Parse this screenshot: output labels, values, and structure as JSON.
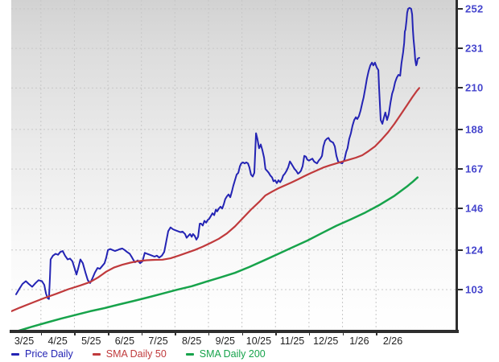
{
  "chart_data": {
    "type": "line",
    "title": "",
    "grid": "dashed",
    "legend_position": "bottom-left",
    "x_axis": {
      "labels": [
        "3/25",
        "4/25",
        "5/25",
        "6/25",
        "7/25",
        "8/25",
        "9/25",
        "10/25",
        "11/25",
        "12/25",
        "1/26",
        "2/26"
      ],
      "unit": "month"
    },
    "y_axis": {
      "ticks": [
        252,
        231,
        210,
        188,
        167,
        146,
        124,
        103
      ],
      "side": "right",
      "min": 95,
      "max": 257
    },
    "series": [
      {
        "name": "Price Daily",
        "color": "#2424b4",
        "points": [
          [
            -0.24,
            100.5
          ],
          [
            -0.14,
            103.5
          ],
          [
            -0.05,
            106
          ],
          [
            0.05,
            107.5
          ],
          [
            0.14,
            106
          ],
          [
            0.24,
            104.5
          ],
          [
            0.34,
            106.5
          ],
          [
            0.43,
            108
          ],
          [
            0.53,
            107.5
          ],
          [
            0.6,
            105.5
          ],
          [
            0.65,
            101
          ],
          [
            0.7,
            98.5
          ],
          [
            0.74,
            98
          ],
          [
            0.77,
            110
          ],
          [
            0.79,
            119
          ],
          [
            0.86,
            121
          ],
          [
            0.94,
            122
          ],
          [
            1.01,
            121.5
          ],
          [
            1.08,
            123
          ],
          [
            1.15,
            123.5
          ],
          [
            1.22,
            121
          ],
          [
            1.3,
            119
          ],
          [
            1.37,
            119.5
          ],
          [
            1.44,
            118
          ],
          [
            1.51,
            114
          ],
          [
            1.56,
            111
          ],
          [
            1.61,
            114
          ],
          [
            1.68,
            119
          ],
          [
            1.75,
            117
          ],
          [
            1.83,
            112
          ],
          [
            1.9,
            108
          ],
          [
            1.97,
            106.5
          ],
          [
            2.04,
            109
          ],
          [
            2.11,
            112
          ],
          [
            2.19,
            114.5
          ],
          [
            2.26,
            114
          ],
          [
            2.33,
            115.5
          ],
          [
            2.4,
            117
          ],
          [
            2.45,
            120
          ],
          [
            2.5,
            124
          ],
          [
            2.57,
            124.5
          ],
          [
            2.64,
            124
          ],
          [
            2.71,
            123.5
          ],
          [
            2.79,
            124
          ],
          [
            2.86,
            124.5
          ],
          [
            2.93,
            124.8
          ],
          [
            3.0,
            124
          ],
          [
            3.07,
            123
          ],
          [
            3.15,
            122
          ],
          [
            3.22,
            120
          ],
          [
            3.27,
            118.5
          ],
          [
            3.31,
            117.5
          ],
          [
            3.39,
            118.5
          ],
          [
            3.46,
            117
          ],
          [
            3.53,
            118
          ],
          [
            3.6,
            122.5
          ],
          [
            3.67,
            122
          ],
          [
            3.75,
            121.5
          ],
          [
            3.82,
            121
          ],
          [
            3.89,
            120.5
          ],
          [
            3.96,
            121
          ],
          [
            4.03,
            120
          ],
          [
            4.11,
            121
          ],
          [
            4.18,
            123
          ],
          [
            4.23,
            127.5
          ],
          [
            4.3,
            134
          ],
          [
            4.37,
            136
          ],
          [
            4.44,
            135
          ],
          [
            4.51,
            134.5
          ],
          [
            4.59,
            134
          ],
          [
            4.66,
            133.5
          ],
          [
            4.73,
            133.8
          ],
          [
            4.8,
            132.5
          ],
          [
            4.85,
            130.5
          ],
          [
            4.9,
            131.5
          ],
          [
            4.95,
            132.5
          ],
          [
            5.0,
            131
          ],
          [
            5.04,
            132.5
          ],
          [
            5.09,
            131.5
          ],
          [
            5.14,
            129.5
          ],
          [
            5.19,
            131
          ],
          [
            5.24,
            138
          ],
          [
            5.28,
            138
          ],
          [
            5.33,
            137
          ],
          [
            5.38,
            139.5
          ],
          [
            5.43,
            138.5
          ],
          [
            5.48,
            140
          ],
          [
            5.52,
            140.5
          ],
          [
            5.57,
            142
          ],
          [
            5.62,
            143.5
          ],
          [
            5.67,
            142.5
          ],
          [
            5.72,
            145.5
          ],
          [
            5.76,
            144.5
          ],
          [
            5.81,
            146
          ],
          [
            5.86,
            147
          ],
          [
            5.91,
            146
          ],
          [
            5.96,
            148.5
          ],
          [
            6.0,
            151
          ],
          [
            6.05,
            152.5
          ],
          [
            6.1,
            153.5
          ],
          [
            6.15,
            152
          ],
          [
            6.2,
            155
          ],
          [
            6.24,
            158
          ],
          [
            6.29,
            161
          ],
          [
            6.34,
            164
          ],
          [
            6.39,
            165
          ],
          [
            6.44,
            168.5
          ],
          [
            6.48,
            170
          ],
          [
            6.53,
            170.5
          ],
          [
            6.58,
            170
          ],
          [
            6.63,
            170.5
          ],
          [
            6.68,
            170
          ],
          [
            6.72,
            168
          ],
          [
            6.77,
            164
          ],
          [
            6.82,
            163
          ],
          [
            6.87,
            165
          ],
          [
            6.92,
            186
          ],
          [
            6.96,
            183
          ],
          [
            7.01,
            178
          ],
          [
            7.06,
            180
          ],
          [
            7.11,
            177
          ],
          [
            7.16,
            173
          ],
          [
            7.2,
            167
          ],
          [
            7.25,
            166
          ],
          [
            7.3,
            165
          ],
          [
            7.35,
            163.5
          ],
          [
            7.4,
            162.5
          ],
          [
            7.44,
            160.5
          ],
          [
            7.49,
            161
          ],
          [
            7.54,
            159.5
          ],
          [
            7.59,
            161
          ],
          [
            7.64,
            160
          ],
          [
            7.69,
            161.5
          ],
          [
            7.73,
            163.5
          ],
          [
            7.78,
            164.5
          ],
          [
            7.83,
            166
          ],
          [
            7.88,
            168
          ],
          [
            7.93,
            171
          ],
          [
            7.97,
            170
          ],
          [
            8.02,
            168.5
          ],
          [
            8.07,
            167
          ],
          [
            8.12,
            166
          ],
          [
            8.17,
            164.5
          ],
          [
            8.21,
            165
          ],
          [
            8.26,
            166
          ],
          [
            8.31,
            168.5
          ],
          [
            8.36,
            174
          ],
          [
            8.41,
            173.5
          ],
          [
            8.45,
            172
          ],
          [
            8.5,
            171.5
          ],
          [
            8.55,
            172
          ],
          [
            8.6,
            172.5
          ],
          [
            8.65,
            171
          ],
          [
            8.69,
            170.5
          ],
          [
            8.74,
            170
          ],
          [
            8.79,
            171.5
          ],
          [
            8.84,
            172.5
          ],
          [
            8.89,
            174
          ],
          [
            8.93,
            179
          ],
          [
            8.98,
            182
          ],
          [
            9.03,
            183
          ],
          [
            9.08,
            183.5
          ],
          [
            9.13,
            182
          ],
          [
            9.17,
            181.5
          ],
          [
            9.22,
            181
          ],
          [
            9.27,
            179
          ],
          [
            9.32,
            174
          ],
          [
            9.37,
            171
          ],
          [
            9.41,
            170.5
          ],
          [
            9.49,
            170
          ],
          [
            9.56,
            172
          ],
          [
            9.61,
            176
          ],
          [
            9.65,
            178
          ],
          [
            9.7,
            183
          ],
          [
            9.75,
            186
          ],
          [
            9.8,
            190
          ],
          [
            9.85,
            193
          ],
          [
            9.9,
            194.5
          ],
          [
            9.94,
            193.5
          ],
          [
            9.99,
            195
          ],
          [
            10.04,
            198
          ],
          [
            10.09,
            202
          ],
          [
            10.13,
            205
          ],
          [
            10.18,
            210
          ],
          [
            10.23,
            215
          ],
          [
            10.28,
            219
          ],
          [
            10.33,
            222
          ],
          [
            10.38,
            223.5
          ],
          [
            10.42,
            222
          ],
          [
            10.47,
            223.5
          ],
          [
            10.52,
            221
          ],
          [
            10.57,
            219.5
          ],
          [
            10.59,
            211
          ],
          [
            10.64,
            193
          ],
          [
            10.69,
            191
          ],
          [
            10.73,
            194
          ],
          [
            10.78,
            197
          ],
          [
            10.83,
            193
          ],
          [
            10.88,
            196
          ],
          [
            10.93,
            202
          ],
          [
            10.98,
            207
          ],
          [
            11.02,
            209
          ],
          [
            11.07,
            213
          ],
          [
            11.12,
            215.5
          ],
          [
            11.17,
            217
          ],
          [
            11.22,
            216.5
          ],
          [
            11.26,
            223
          ],
          [
            11.31,
            229
          ],
          [
            11.34,
            234
          ],
          [
            11.36,
            240
          ],
          [
            11.38,
            241
          ],
          [
            11.41,
            246
          ],
          [
            11.43,
            250
          ],
          [
            11.46,
            252
          ],
          [
            11.5,
            252.5
          ],
          [
            11.55,
            252
          ],
          [
            11.58,
            249
          ],
          [
            11.6,
            241
          ],
          [
            11.62,
            236
          ],
          [
            11.65,
            230
          ],
          [
            11.67,
            225
          ],
          [
            11.7,
            222
          ],
          [
            11.72,
            223
          ],
          [
            11.74,
            225.5
          ],
          [
            11.79,
            226
          ]
        ]
      },
      {
        "name": "SMA Daily 50",
        "color": "#c03a3c",
        "points": [
          [
            -0.38,
            91.5
          ],
          [
            -0.12,
            93.5
          ],
          [
            0.24,
            96
          ],
          [
            0.6,
            98.5
          ],
          [
            0.96,
            100.8
          ],
          [
            1.32,
            103.2
          ],
          [
            1.68,
            105.2
          ],
          [
            1.97,
            107
          ],
          [
            2.21,
            109.5
          ],
          [
            2.45,
            112.5
          ],
          [
            2.69,
            114.8
          ],
          [
            2.93,
            116.2
          ],
          [
            3.17,
            117.3
          ],
          [
            3.41,
            118.1
          ],
          [
            3.65,
            118.6
          ],
          [
            3.89,
            118.8
          ],
          [
            4.13,
            118.9
          ],
          [
            4.37,
            119.6
          ],
          [
            4.61,
            121
          ],
          [
            4.85,
            122.5
          ],
          [
            5.09,
            124
          ],
          [
            5.33,
            125.8
          ],
          [
            5.57,
            127.8
          ],
          [
            5.81,
            130
          ],
          [
            6.05,
            132.8
          ],
          [
            6.29,
            136.5
          ],
          [
            6.53,
            141
          ],
          [
            6.77,
            145.5
          ],
          [
            7.01,
            149.5
          ],
          [
            7.2,
            153
          ],
          [
            7.4,
            155
          ],
          [
            7.59,
            156.8
          ],
          [
            7.78,
            158.3
          ],
          [
            7.97,
            159.8
          ],
          [
            8.17,
            161.5
          ],
          [
            8.36,
            163.2
          ],
          [
            8.55,
            164.8
          ],
          [
            8.74,
            166.3
          ],
          [
            8.93,
            167.8
          ],
          [
            9.13,
            169
          ],
          [
            9.32,
            170
          ],
          [
            9.51,
            171
          ],
          [
            9.7,
            172
          ],
          [
            9.9,
            173
          ],
          [
            10.09,
            174.3
          ],
          [
            10.28,
            176.5
          ],
          [
            10.47,
            179
          ],
          [
            10.66,
            182.5
          ],
          [
            10.86,
            186.5
          ],
          [
            11.05,
            191
          ],
          [
            11.24,
            196
          ],
          [
            11.43,
            201
          ],
          [
            11.58,
            205
          ],
          [
            11.72,
            208.5
          ],
          [
            11.79,
            210
          ]
        ]
      },
      {
        "name": "SMA Daily 200",
        "color": "#17a34b",
        "points": [
          [
            -0.19,
            81
          ],
          [
            0.24,
            83.3
          ],
          [
            0.67,
            85.5
          ],
          [
            1.1,
            87.6
          ],
          [
            1.54,
            89.6
          ],
          [
            1.97,
            91.5
          ],
          [
            2.4,
            93.2
          ],
          [
            2.83,
            95.1
          ],
          [
            3.27,
            97
          ],
          [
            3.7,
            98.9
          ],
          [
            4.13,
            100.9
          ],
          [
            4.56,
            102.9
          ],
          [
            5.0,
            104.8
          ],
          [
            5.43,
            107.2
          ],
          [
            5.86,
            109.5
          ],
          [
            6.29,
            111.9
          ],
          [
            6.72,
            115
          ],
          [
            7.16,
            118.5
          ],
          [
            7.59,
            122
          ],
          [
            8.02,
            125.5
          ],
          [
            8.45,
            129
          ],
          [
            8.89,
            133
          ],
          [
            9.32,
            136.9
          ],
          [
            9.75,
            140.3
          ],
          [
            10.18,
            143.9
          ],
          [
            10.61,
            148
          ],
          [
            11.05,
            152.8
          ],
          [
            11.41,
            157.5
          ],
          [
            11.6,
            160.3
          ],
          [
            11.74,
            162.5
          ]
        ]
      }
    ]
  },
  "legend": {
    "items": [
      {
        "label": "Price Daily",
        "color": "#2424b4"
      },
      {
        "label": "SMA Daily 50",
        "color": "#c03a3c"
      },
      {
        "label": "SMA Daily 200",
        "color": "#17a34b"
      }
    ]
  },
  "colors": {
    "y_label": "#4545cd",
    "x_label": "#1f1f1f",
    "axis": "#2e2e2e",
    "gridline": "#c7c7c7"
  }
}
